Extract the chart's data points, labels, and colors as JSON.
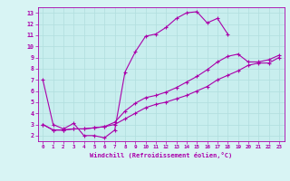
{
  "xlabel": "Windchill (Refroidissement éolien,°C)",
  "xlim": [
    -0.5,
    23.5
  ],
  "ylim": [
    1.5,
    13.5
  ],
  "xticks": [
    0,
    1,
    2,
    3,
    4,
    5,
    6,
    7,
    8,
    9,
    10,
    11,
    12,
    13,
    14,
    15,
    16,
    17,
    18,
    19,
    20,
    21,
    22,
    23
  ],
  "yticks": [
    2,
    3,
    4,
    5,
    6,
    7,
    8,
    9,
    10,
    11,
    12,
    13
  ],
  "background_color": "#d8f4f4",
  "plot_bg_color": "#c8eeee",
  "line_color": "#aa00aa",
  "grid_color": "#b0dede",
  "line1_x": [
    0,
    1,
    2,
    3,
    4,
    5,
    6,
    7,
    8,
    9,
    10,
    11,
    12,
    13,
    14,
    15,
    16,
    17,
    18
  ],
  "line1_y": [
    7.0,
    3.0,
    2.6,
    3.1,
    2.0,
    2.0,
    1.8,
    2.5,
    7.7,
    9.5,
    10.9,
    11.1,
    11.7,
    12.5,
    13.0,
    13.1,
    12.1,
    12.5,
    11.1
  ],
  "line2_x": [
    0,
    1,
    2,
    3,
    4,
    5,
    6,
    7,
    8,
    9,
    10,
    11,
    12,
    13,
    14,
    15,
    16,
    17,
    18,
    19,
    20,
    21,
    22,
    23
  ],
  "line2_y": [
    3.0,
    2.5,
    2.5,
    2.6,
    2.6,
    2.7,
    2.8,
    3.0,
    3.5,
    4.0,
    4.5,
    4.8,
    5.0,
    5.3,
    5.6,
    6.0,
    6.4,
    7.0,
    7.4,
    7.8,
    8.3,
    8.5,
    8.5,
    9.0
  ],
  "line3_x": [
    0,
    1,
    2,
    3,
    4,
    5,
    6,
    7,
    8,
    9,
    10,
    11,
    12,
    13,
    14,
    15,
    16,
    17,
    18,
    19,
    20,
    21,
    22,
    23
  ],
  "line3_y": [
    3.0,
    2.5,
    2.5,
    2.6,
    2.6,
    2.7,
    2.8,
    3.2,
    4.2,
    4.9,
    5.4,
    5.6,
    5.9,
    6.3,
    6.8,
    7.3,
    7.9,
    8.6,
    9.1,
    9.3,
    8.6,
    8.6,
    8.8,
    9.2
  ]
}
